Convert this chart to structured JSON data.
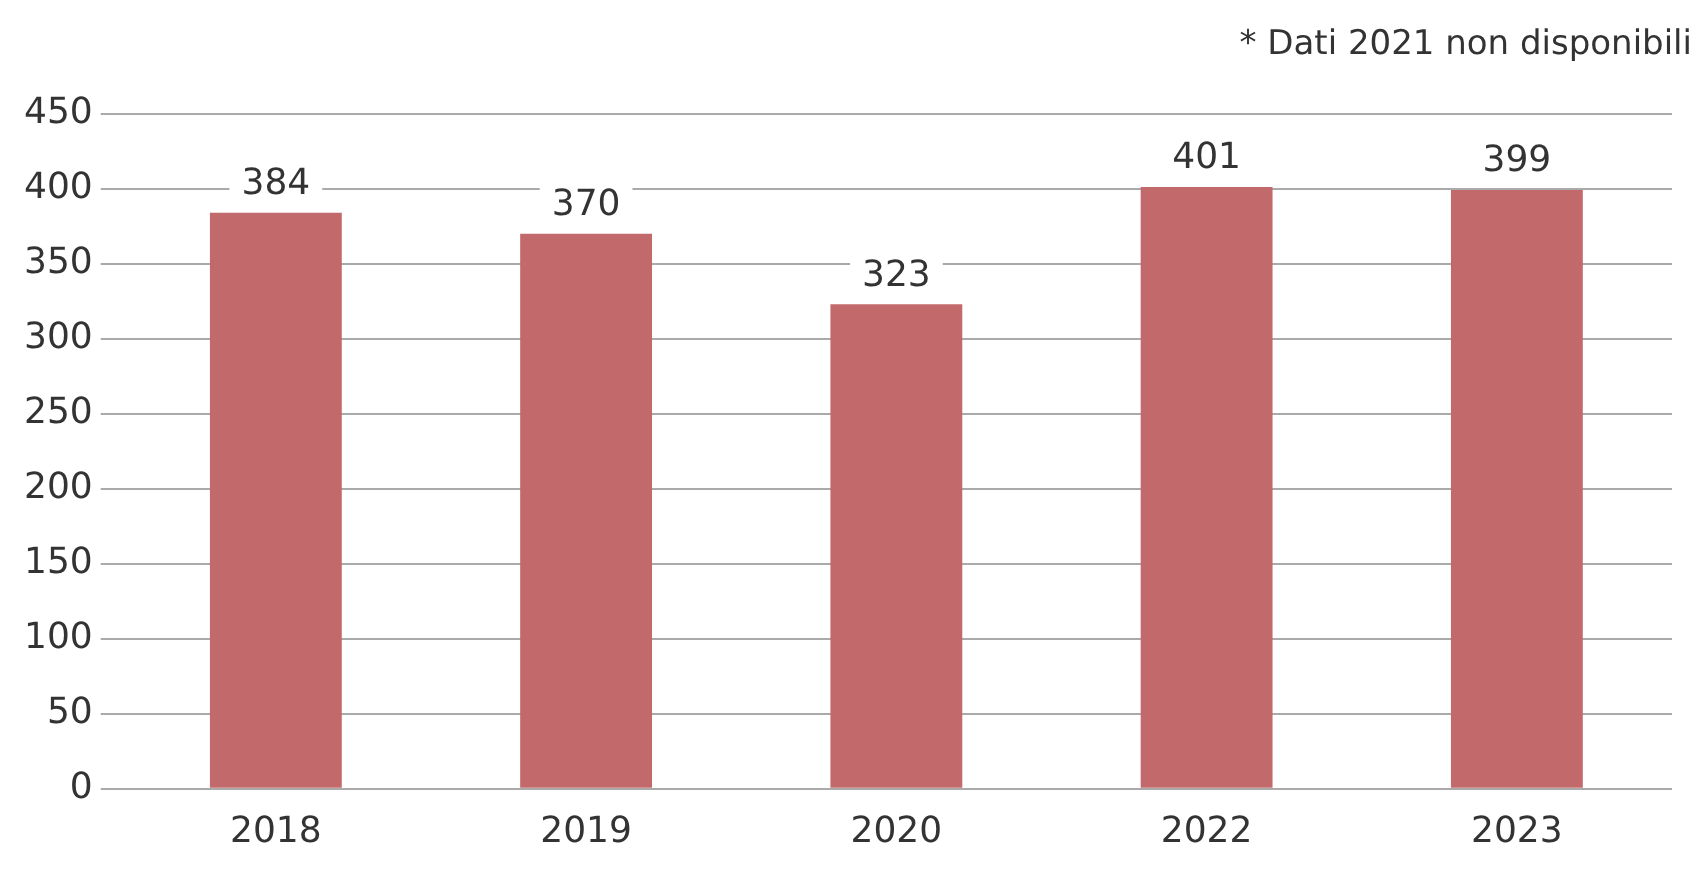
{
  "chart_data": {
    "type": "bar",
    "categories": [
      "2018",
      "2019",
      "2020",
      "2022",
      "2023"
    ],
    "values": [
      384,
      370,
      323,
      401,
      399
    ],
    "color": "#c26a6b",
    "ylim": [
      0,
      450
    ],
    "yticks": [
      0,
      50,
      100,
      150,
      200,
      250,
      300,
      350,
      400,
      450
    ],
    "grid": "y",
    "data_labels": true,
    "annotations": [
      "* Dati 2021 non disponibili"
    ]
  }
}
